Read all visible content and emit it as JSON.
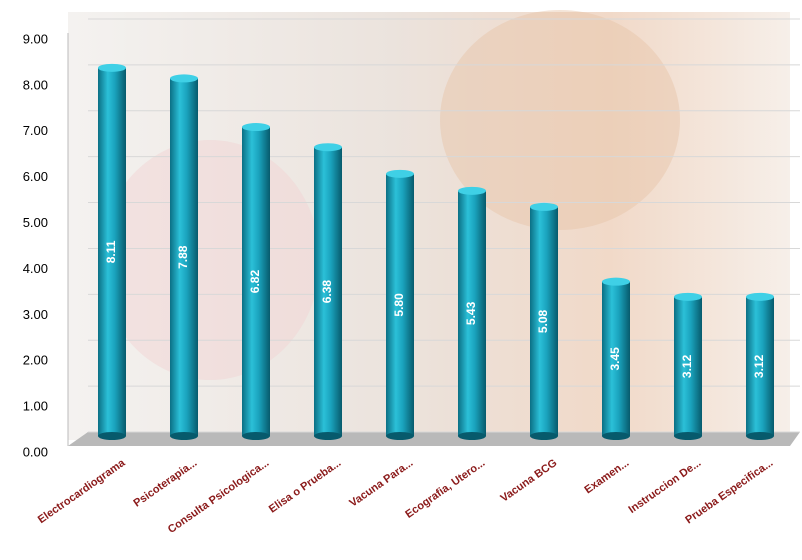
{
  "chart_data": {
    "type": "bar",
    "categories": [
      "Electrocardiograma",
      "Psicoterapia...",
      "Consulta Psicologica...",
      "Elisa o Prueba...",
      "Vacuna Para...",
      "Ecografia, Utero...",
      "Vacuna BCG",
      "Examen...",
      "Instruccion De...",
      "Prueba Especifica..."
    ],
    "values": [
      8.11,
      7.88,
      6.82,
      6.38,
      5.8,
      5.43,
      5.08,
      3.45,
      3.12,
      3.12
    ],
    "value_labels": [
      "8.11",
      "7.88",
      "6.82",
      "6.38",
      "5.80",
      "5.43",
      "5.08",
      "3.45",
      "3.12",
      "3.12"
    ],
    "color": "#1aa3bd",
    "ylim": [
      0,
      9
    ],
    "yticks": [
      {
        "value": 0,
        "label": "0.00"
      },
      {
        "value": 1,
        "label": "1.00"
      },
      {
        "value": 2,
        "label": "2.00"
      },
      {
        "value": 3,
        "label": "3.00"
      },
      {
        "value": 4,
        "label": "4.00"
      },
      {
        "value": 5,
        "label": "5.00"
      },
      {
        "value": 6,
        "label": "6.00"
      },
      {
        "value": 7,
        "label": "7.00"
      },
      {
        "value": 8,
        "label": "8.00"
      },
      {
        "value": 9,
        "label": "9.00"
      }
    ],
    "grid": true
  }
}
